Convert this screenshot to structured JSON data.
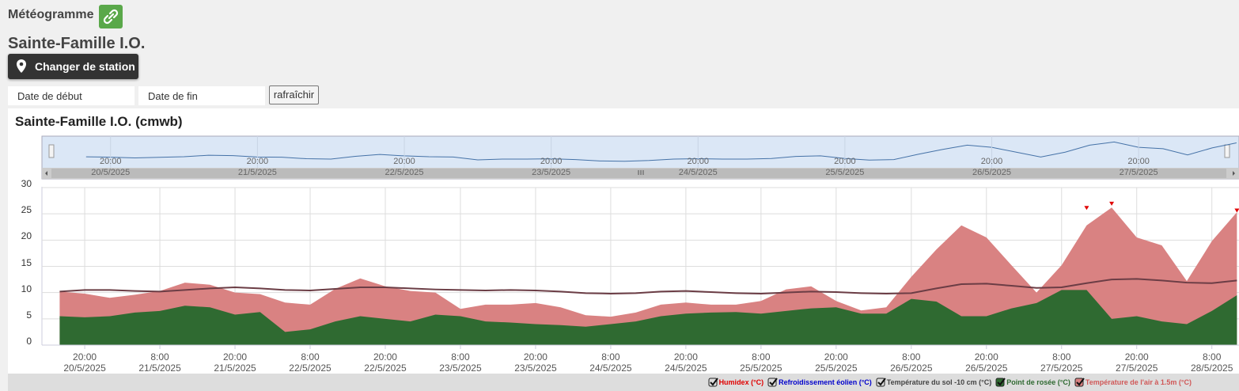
{
  "header": {
    "title": "Météogramme",
    "station": "Sainte-Famille I.O.",
    "change_button": "Changer de station",
    "start_date": "Date de début",
    "end_date": "Date de fin",
    "refresh": "rafraîchir"
  },
  "chart_data": {
    "type": "area",
    "title": "Sainte-Famille I.O. (cmwb)",
    "x": [
      "2025-05-20T16:00",
      "2025-05-20T20:00",
      "2025-05-21T00:00",
      "2025-05-21T04:00",
      "2025-05-21T08:00",
      "2025-05-21T12:00",
      "2025-05-21T16:00",
      "2025-05-21T20:00",
      "2025-05-22T00:00",
      "2025-05-22T04:00",
      "2025-05-22T08:00",
      "2025-05-22T12:00",
      "2025-05-22T16:00",
      "2025-05-22T20:00",
      "2025-05-23T00:00",
      "2025-05-23T04:00",
      "2025-05-23T08:00",
      "2025-05-23T12:00",
      "2025-05-23T16:00",
      "2025-05-23T20:00",
      "2025-05-24T00:00",
      "2025-05-24T04:00",
      "2025-05-24T08:00",
      "2025-05-24T12:00",
      "2025-05-24T16:00",
      "2025-05-24T20:00",
      "2025-05-25T00:00",
      "2025-05-25T04:00",
      "2025-05-25T08:00",
      "2025-05-25T12:00",
      "2025-05-25T16:00",
      "2025-05-25T20:00",
      "2025-05-26T00:00",
      "2025-05-26T04:00",
      "2025-05-26T08:00",
      "2025-05-26T12:00",
      "2025-05-26T16:00",
      "2025-05-26T20:00",
      "2025-05-27T00:00",
      "2025-05-27T04:00",
      "2025-05-27T08:00",
      "2025-05-27T12:00",
      "2025-05-27T16:00",
      "2025-05-27T20:00",
      "2025-05-28T00:00",
      "2025-05-28T04:00",
      "2025-05-28T08:00",
      "2025-05-28T12:00"
    ],
    "xlim": [
      "2025-05-20T13:10",
      "2025-05-28T12:20"
    ],
    "xticks": [
      {
        "value": "2025-05-20T20:00",
        "label": "20:00\n20/5/2025"
      },
      {
        "value": "2025-05-21T08:00",
        "label": "8:00\n21/5/2025"
      },
      {
        "value": "2025-05-21T20:00",
        "label": "20:00\n21/5/2025"
      },
      {
        "value": "2025-05-22T08:00",
        "label": "8:00\n22/5/2025"
      },
      {
        "value": "2025-05-22T20:00",
        "label": "20:00\n22/5/2025"
      },
      {
        "value": "2025-05-23T08:00",
        "label": "8:00\n23/5/2025"
      },
      {
        "value": "2025-05-23T20:00",
        "label": "20:00\n23/5/2025"
      },
      {
        "value": "2025-05-24T08:00",
        "label": "8:00\n24/5/2025"
      },
      {
        "value": "2025-05-24T20:00",
        "label": "20:00\n24/5/2025"
      },
      {
        "value": "2025-05-25T08:00",
        "label": "8:00\n25/5/2025"
      },
      {
        "value": "2025-05-25T20:00",
        "label": "20:00\n25/5/2025"
      },
      {
        "value": "2025-05-26T08:00",
        "label": "8:00\n26/5/2025"
      },
      {
        "value": "2025-05-26T20:00",
        "label": "20:00\n26/5/2025"
      },
      {
        "value": "2025-05-27T08:00",
        "label": "8:00\n27/5/2025"
      },
      {
        "value": "2025-05-27T20:00",
        "label": "20:00\n27/5/2025"
      },
      {
        "value": "2025-05-28T08:00",
        "label": "8:00\n28/5/2025"
      }
    ],
    "navigator_xlim": [
      "2025-05-20T10:20",
      "2025-05-28T10:20"
    ],
    "navigator_xticks": [
      {
        "value": "2025-05-20T20:00",
        "label": "20:00\n20/5/2025"
      },
      {
        "value": "2025-05-21T20:00",
        "label": "20:00\n21/5/2025"
      },
      {
        "value": "2025-05-22T20:00",
        "label": "20:00\n22/5/2025"
      },
      {
        "value": "2025-05-23T20:00",
        "label": "20:00\n23/5/2025"
      },
      {
        "value": "2025-05-24T20:00",
        "label": "20:00\n24/5/2025"
      },
      {
        "value": "2025-05-25T20:00",
        "label": "20:00\n25/5/2025"
      },
      {
        "value": "2025-05-26T20:00",
        "label": "20:00\n26/5/2025"
      },
      {
        "value": "2025-05-27T20:00",
        "label": "20:00\n27/5/2025"
      }
    ],
    "ylim": [
      0,
      30
    ],
    "yticks": [
      0,
      5,
      10,
      15,
      20,
      25,
      30
    ],
    "grid": true,
    "series": [
      {
        "name": "Humidex (°C)",
        "kind": "marker",
        "color": "#e00000",
        "values": [
          null,
          null,
          null,
          null,
          null,
          null,
          null,
          null,
          null,
          null,
          null,
          null,
          null,
          null,
          null,
          null,
          null,
          null,
          null,
          null,
          null,
          null,
          null,
          null,
          null,
          null,
          null,
          null,
          null,
          null,
          null,
          null,
          null,
          null,
          null,
          null,
          null,
          null,
          null,
          null,
          null,
          26.2,
          27,
          null,
          null,
          null,
          null,
          25.7
        ]
      },
      {
        "name": "Refroidissement éolien (°C)",
        "kind": "marker",
        "color": "#0000cc",
        "values": [
          null,
          null,
          null,
          null,
          null,
          null,
          null,
          null,
          null,
          null,
          null,
          null,
          null,
          null,
          null,
          null,
          null,
          null,
          null,
          null,
          null,
          null,
          null,
          null,
          null,
          null,
          null,
          null,
          null,
          null,
          null,
          null,
          null,
          null,
          null,
          null,
          null,
          null,
          null,
          null,
          null,
          null,
          null,
          null,
          null,
          null,
          null,
          null
        ]
      },
      {
        "name": "Température du sol -10 cm (°C)",
        "kind": "line",
        "color": "#6b3d45",
        "values": [
          10.2,
          10.5,
          10.5,
          10.3,
          10.2,
          10.5,
          10.8,
          11,
          10.8,
          10.5,
          10.4,
          10.7,
          11,
          11,
          10.8,
          10.6,
          10.5,
          10.4,
          10.5,
          10.4,
          10.2,
          9.9,
          9.8,
          9.9,
          10.2,
          10.3,
          10.1,
          9.9,
          9.8,
          10,
          10.2,
          10.1,
          9.9,
          9.8,
          9.9,
          10.8,
          11.6,
          11.7,
          11.3,
          10.9,
          11,
          11.8,
          12.5,
          12.6,
          12.3,
          11.9,
          11.8,
          12.3
        ]
      },
      {
        "name": "Point de rosée (°C)",
        "kind": "area",
        "color": "#2f6a31",
        "values": [
          5.5,
          5.3,
          5.5,
          6.2,
          6.5,
          7.5,
          7.2,
          5.8,
          6.3,
          2.5,
          3,
          4.5,
          5.5,
          5,
          4.5,
          5.8,
          5.5,
          4.5,
          4.3,
          4,
          3.8,
          3.5,
          4,
          4.5,
          5.5,
          6,
          6.2,
          6.3,
          6,
          6.5,
          7,
          7.2,
          6,
          6,
          8.8,
          8.3,
          5.5,
          5.5,
          7,
          8,
          10.5,
          10.5,
          5,
          5.5,
          4.5,
          4,
          6.5,
          9.5
        ]
      },
      {
        "name": "Température de l'air à 1.5m (°C)",
        "kind": "area",
        "color": "#d98282",
        "values": [
          10.2,
          9.8,
          9,
          9.6,
          10.3,
          11.9,
          11.5,
          10,
          9.7,
          8.1,
          7.7,
          10.7,
          12.7,
          11.2,
          10.3,
          10,
          6.9,
          7.7,
          7.7,
          8,
          7.2,
          5.7,
          5.4,
          6.2,
          7.7,
          8.1,
          7.7,
          7.7,
          8.4,
          10.6,
          11.2,
          8.4,
          6.6,
          7.2,
          13,
          18.2,
          22.8,
          20.5,
          15.2,
          10,
          15.2,
          22.8,
          26.2,
          20.5,
          19,
          12.2,
          19.8,
          25.3
        ]
      }
    ]
  }
}
